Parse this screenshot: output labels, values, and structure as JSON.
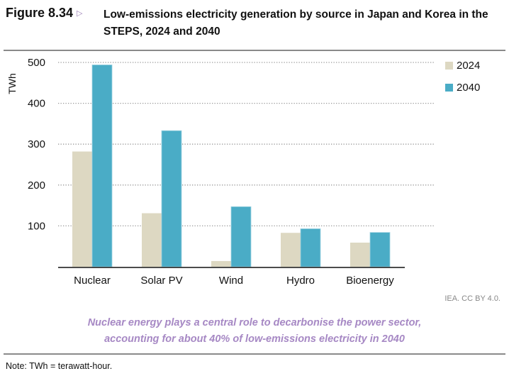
{
  "header": {
    "figure_number": "Figure 8.34",
    "arrow_icon": "triangle-right-icon",
    "title": "Low-emissions electricity generation by source in Japan and Korea in the STEPS, 2024 and 2040"
  },
  "chart_data": {
    "type": "bar",
    "title": "Low-emissions electricity generation by source in Japan and Korea in the STEPS, 2024 and 2040",
    "xlabel": "",
    "ylabel": "TWh",
    "ylim": [
      0,
      500
    ],
    "yticks": [
      100,
      200,
      300,
      400,
      500
    ],
    "ytick_labels": [
      "100",
      "200",
      "300",
      "400",
      "500"
    ],
    "grid": true,
    "legend_position": "top-right",
    "categories": [
      "Nuclear",
      "Solar PV",
      "Wind",
      "Hydro",
      "Bioenergy"
    ],
    "series": [
      {
        "name": "2024",
        "color": "#ddd8c2",
        "values": [
          282,
          131,
          14,
          83,
          59
        ]
      },
      {
        "name": "2040",
        "color": "#4aacc6",
        "values": [
          494,
          333,
          147,
          93,
          84
        ]
      }
    ]
  },
  "credit": "IEA. CC BY 4.0.",
  "takeaway": {
    "line1": "Nuclear energy plays a central role to decarbonise the power sector,",
    "line2": "accounting for about 40% of low-emissions electricity in 2040"
  },
  "note": "Note: TWh = terawatt-hour.",
  "colors": {
    "accent_purple": "#a688c4",
    "rule_gray": "#8a8a8a"
  }
}
